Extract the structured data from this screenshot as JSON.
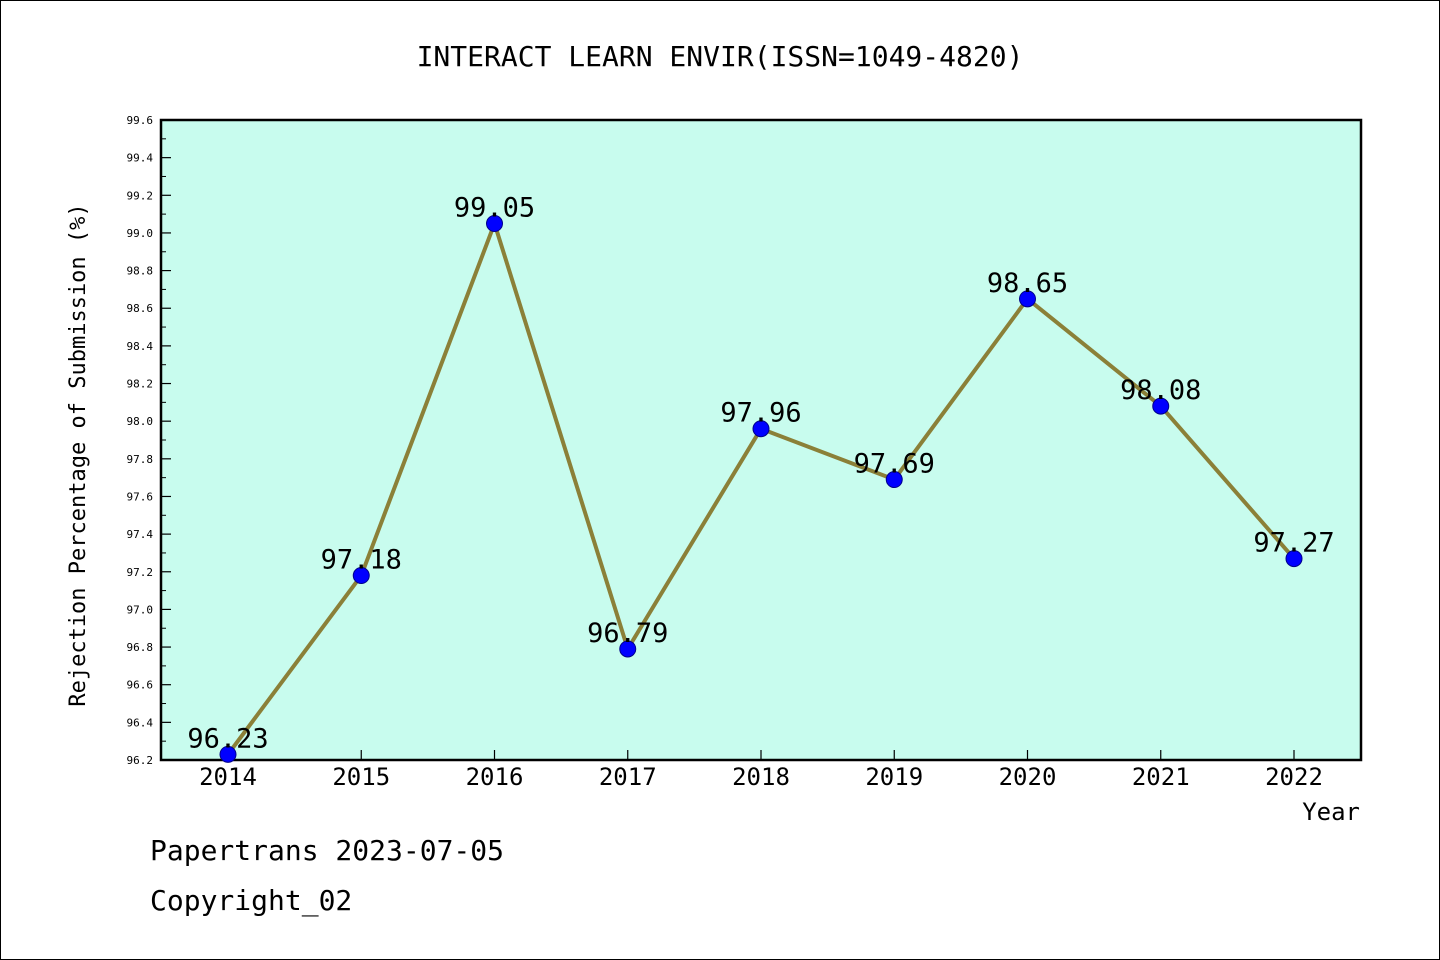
{
  "chart_data": {
    "type": "line",
    "title": "INTERACT LEARN ENVIR(ISSN=1049-4820)",
    "xlabel": "Year",
    "ylabel": "Rejection Percentage of Submission (%)",
    "categories": [
      "2014",
      "2015",
      "2016",
      "2017",
      "2018",
      "2019",
      "2020",
      "2021",
      "2022"
    ],
    "series": [
      {
        "values": [
          96.23,
          97.18,
          99.05,
          96.79,
          97.96,
          97.69,
          98.65,
          98.08,
          97.27
        ]
      }
    ],
    "data_labels": [
      "96.23",
      "97.18",
      "99.05",
      "96.79",
      "97.96",
      "97.69",
      "98.65",
      "98.08",
      "97.27"
    ],
    "ylim": [
      96.2,
      99.6
    ],
    "yticks": [
      "96.2",
      "96.4",
      "96.6",
      "96.8",
      "97.0",
      "97.2",
      "97.4",
      "97.6",
      "97.8",
      "98.0",
      "98.2",
      "98.4",
      "98.6",
      "98.8",
      "99.0",
      "99.2",
      "99.4",
      "99.6"
    ],
    "grid": false,
    "colors": {
      "plot_background": "#c8fcee",
      "line": "#8b8038",
      "marker": "#0000ff",
      "marker_edge": "#00008b"
    }
  },
  "footer": {
    "line1": "Papertrans 2023-07-05",
    "line2": "Copyright_02"
  }
}
